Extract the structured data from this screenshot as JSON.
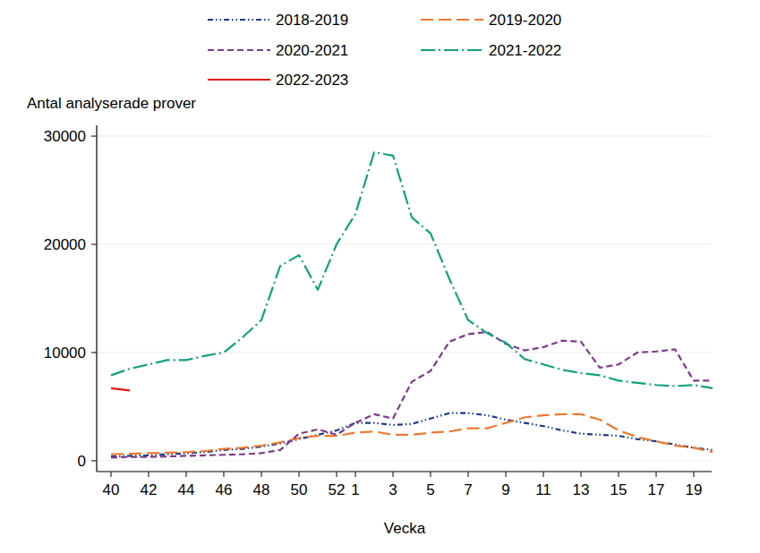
{
  "chart_data": {
    "type": "line",
    "y_label": "Antal analyserade prover",
    "x_label": "Vecka",
    "categories": [
      "40",
      null,
      "42",
      null,
      "44",
      null,
      "46",
      null,
      "48",
      null,
      "50",
      null,
      "52",
      "1",
      null,
      "3",
      null,
      "5",
      null,
      "7",
      null,
      "9",
      null,
      "11",
      null,
      "13",
      null,
      "15",
      null,
      "17",
      null,
      "19",
      null
    ],
    "series": [
      {
        "name": "2018-2019",
        "color": "#1f3a8a",
        "line_style": "dash-dot-dot",
        "values": [
          400,
          450,
          500,
          600,
          700,
          800,
          1000,
          1100,
          1300,
          1600,
          2000,
          2400,
          2800,
          3500,
          3500,
          3300,
          3400,
          3900,
          4400,
          4400,
          4200,
          3800,
          3500,
          3200,
          2800,
          2500,
          2400,
          2300,
          2000,
          1800,
          1500,
          1200,
          1000
        ]
      },
      {
        "name": "2019-2020",
        "color": "#ec7a30",
        "line_style": "long-dash",
        "values": [
          600,
          650,
          700,
          750,
          800,
          900,
          1100,
          1200,
          1400,
          1700,
          2100,
          2300,
          2300,
          2600,
          2700,
          2400,
          2400,
          2600,
          2700,
          3000,
          3000,
          3500,
          4000,
          4200,
          4300,
          4300,
          3800,
          2800,
          2200,
          1800,
          1400,
          1200,
          800
        ]
      },
      {
        "name": "2020-2021",
        "color": "#7d3c8c",
        "line_style": "dash",
        "values": [
          300,
          350,
          350,
          400,
          450,
          500,
          550,
          600,
          700,
          1000,
          2500,
          2900,
          2400,
          3500,
          4300,
          3900,
          7300,
          8300,
          11000,
          11700,
          11900,
          10800,
          10200,
          10500,
          11100,
          11000,
          8600,
          8900,
          10000,
          10100,
          10300,
          7400,
          7400
        ]
      },
      {
        "name": "2021-2022",
        "color": "#12a07e",
        "line_style": "long-dash-dot",
        "values": [
          7900,
          8500,
          8900,
          9300,
          9300,
          9700,
          10000,
          11400,
          13000,
          18000,
          19000,
          15800,
          20000,
          22800,
          28500,
          28200,
          22500,
          21000,
          16800,
          13000,
          11800,
          10900,
          9400,
          8900,
          8400,
          8100,
          7900,
          7400,
          7200,
          7000,
          6900,
          7000,
          6700
        ]
      },
      {
        "name": "2022-2023",
        "color": "#e8120f",
        "line_style": "solid",
        "values": [
          6700,
          6500,
          null,
          null,
          null,
          null,
          null,
          null,
          null,
          null,
          null,
          null,
          null,
          null,
          null,
          null,
          null,
          null,
          null,
          null,
          null,
          null,
          null,
          null,
          null,
          null,
          null,
          null,
          null,
          null,
          null,
          null,
          null
        ]
      }
    ],
    "ylim": [
      -1000,
      31000
    ],
    "yticks": [
      0,
      10000,
      20000,
      30000
    ],
    "grid": true,
    "legend": "top"
  }
}
